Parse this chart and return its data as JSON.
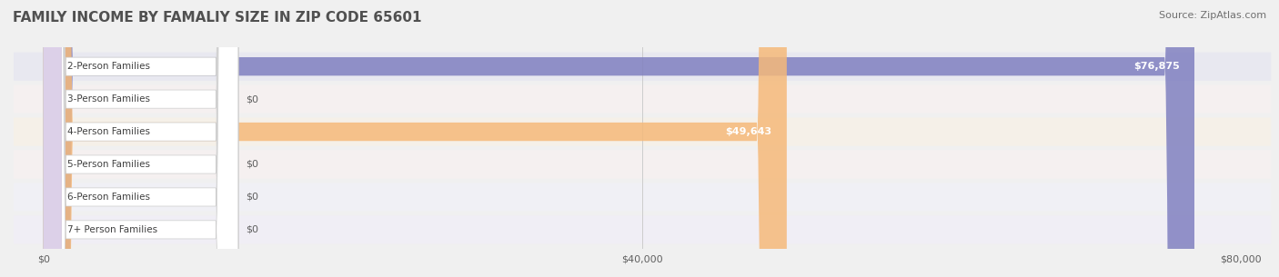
{
  "title": "FAMILY INCOME BY FAMALIY SIZE IN ZIP CODE 65601",
  "source": "Source: ZipAtlas.com",
  "categories": [
    "2-Person Families",
    "3-Person Families",
    "4-Person Families",
    "5-Person Families",
    "6-Person Families",
    "7+ Person Families"
  ],
  "values": [
    76875,
    0,
    49643,
    0,
    0,
    0
  ],
  "bar_colors": [
    "#8080c0",
    "#f08080",
    "#f5b97a",
    "#f08080",
    "#a0b8d8",
    "#c8b8d8"
  ],
  "label_bg_colors": [
    "#d0d0e8",
    "#f8c0c0",
    "#f8d8b0",
    "#f8c0c0",
    "#c8d8e8",
    "#dcd0e8"
  ],
  "xlim": [
    0,
    80000
  ],
  "xticks": [
    0,
    40000,
    80000
  ],
  "xtick_labels": [
    "$0",
    "$40,000",
    "$80,000"
  ],
  "bar_height": 0.55,
  "background_color": "#f0f0f0",
  "row_bg_colors": [
    "#e8e8f0",
    "#f5f0f0",
    "#f5f0e8",
    "#f5f0f0",
    "#f0f0f5",
    "#f0eef5"
  ],
  "title_color": "#505050",
  "source_color": "#707070",
  "value_labels": [
    "$76,875",
    "$0",
    "$49,643",
    "$0",
    "$0",
    "$0"
  ]
}
